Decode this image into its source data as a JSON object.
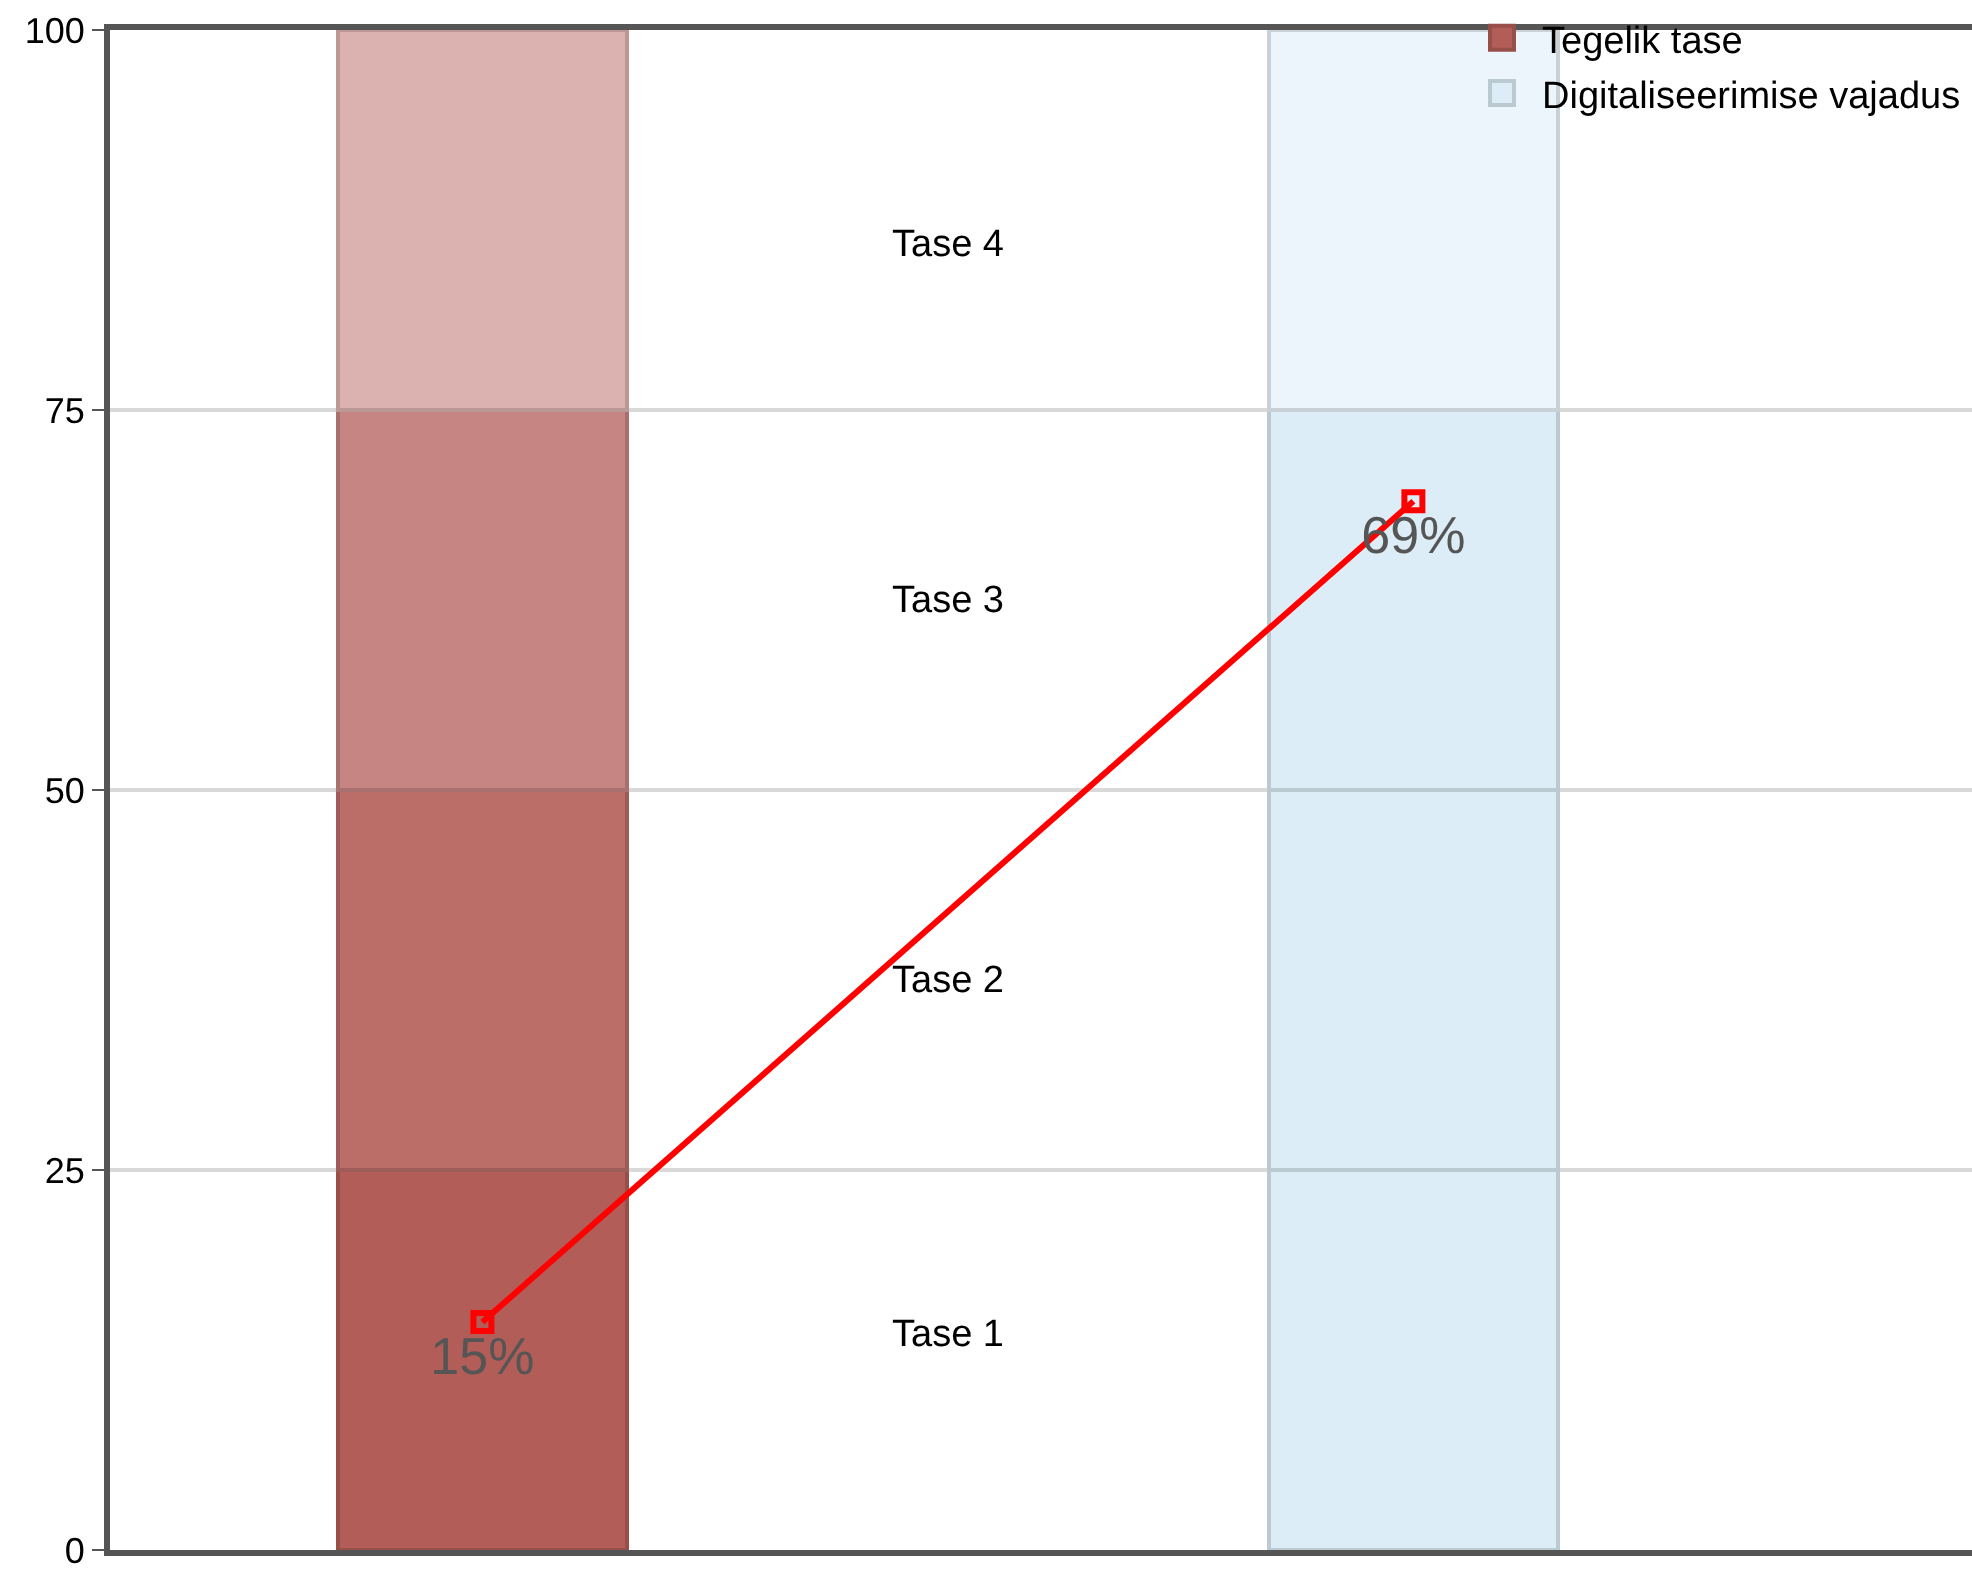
{
  "chart_data": {
    "type": "bar",
    "stacked": true,
    "categories": [
      null,
      null
    ],
    "series": [
      {
        "name": "Tegelik tase",
        "color": "#b35d58",
        "values": [
          25,
          null
        ]
      },
      {
        "color": "#bb6d68",
        "values": [
          25,
          null
        ]
      },
      {
        "color": "#c68583",
        "values": [
          25,
          null
        ]
      },
      {
        "color": "#dcb2b1",
        "values": [
          25,
          null
        ]
      },
      {
        "name": "Digitaliseerimise vajadus",
        "color": "#ddedf7",
        "values": [
          null,
          25
        ]
      },
      {
        "color": "#ddedf7",
        "values": [
          null,
          25
        ]
      },
      {
        "color": "#ddedf7",
        "values": [
          null,
          25
        ]
      },
      {
        "color": "#edf5fc",
        "values": [
          null,
          25
        ]
      },
      {
        "type": "line",
        "color": "#ff0000",
        "values": [
          15,
          69
        ],
        "marker": "square",
        "value_labels": [
          "15%",
          "69%"
        ]
      }
    ],
    "annotations": [
      "Tase 1",
      "Tase 2",
      "Tase 3",
      "Tase 4"
    ],
    "ylim": [
      0,
      100
    ],
    "yticks": [
      0,
      25,
      50,
      75,
      100
    ],
    "grid": "y",
    "legend": "top right",
    "tick_labels": "y"
  }
}
